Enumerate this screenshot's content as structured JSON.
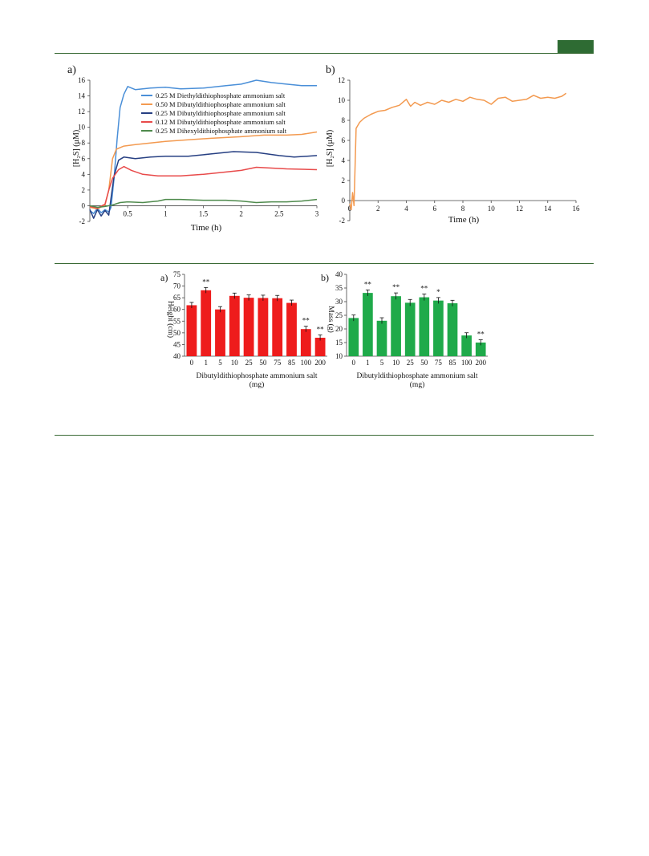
{
  "header": {
    "accent_color": "#2e6b33"
  },
  "figure_top": {
    "panel_a": {
      "label": "a)",
      "chart_data": {
        "type": "line",
        "title": "",
        "xlabel": "Time (h)",
        "ylabel": "[H₂S] (μM)",
        "xlim": [
          0,
          3
        ],
        "ylim": [
          -2,
          16
        ],
        "x_ticks": [
          "0.5",
          "1",
          "1.5",
          "2",
          "2.5",
          "3"
        ],
        "x_tick_values": [
          0.5,
          1,
          1.5,
          2,
          2.5,
          3
        ],
        "y_ticks": [
          "-2",
          "0",
          "2",
          "4",
          "6",
          "8",
          "10",
          "12",
          "14",
          "16"
        ],
        "y_tick_values": [
          -2,
          0,
          2,
          4,
          6,
          8,
          10,
          12,
          14,
          16
        ],
        "legend_position": "top-right",
        "series": [
          {
            "name": "0.25 M Diethyldithiophosphate ammonium salt",
            "color": "#4a8fd8",
            "points": [
              [
                0,
                -0.6
              ],
              [
                0.05,
                -1.0
              ],
              [
                0.1,
                -0.3
              ],
              [
                0.15,
                -0.9
              ],
              [
                0.2,
                -0.5
              ],
              [
                0.25,
                -0.8
              ],
              [
                0.28,
                -0.2
              ],
              [
                0.32,
                3.5
              ],
              [
                0.36,
                8.5
              ],
              [
                0.4,
                12.5
              ],
              [
                0.45,
                14.2
              ],
              [
                0.5,
                15.2
              ],
              [
                0.6,
                14.8
              ],
              [
                0.8,
                15.0
              ],
              [
                1.0,
                15.1
              ],
              [
                1.2,
                14.9
              ],
              [
                1.5,
                15.0
              ],
              [
                1.8,
                15.3
              ],
              [
                2.0,
                15.5
              ],
              [
                2.2,
                16.0
              ],
              [
                2.4,
                15.7
              ],
              [
                2.6,
                15.5
              ],
              [
                2.8,
                15.3
              ],
              [
                3.0,
                15.3
              ]
            ]
          },
          {
            "name": "0.50 M Dibutyldithiophosphate ammonium salt",
            "color": "#f39a50",
            "points": [
              [
                0,
                -0.2
              ],
              [
                0.1,
                -0.4
              ],
              [
                0.2,
                0.1
              ],
              [
                0.25,
                2.0
              ],
              [
                0.3,
                6.0
              ],
              [
                0.35,
                7.2
              ],
              [
                0.45,
                7.6
              ],
              [
                0.6,
                7.8
              ],
              [
                0.8,
                8.0
              ],
              [
                1.0,
                8.2
              ],
              [
                1.3,
                8.4
              ],
              [
                1.6,
                8.6
              ],
              [
                2.0,
                8.8
              ],
              [
                2.3,
                9.0
              ],
              [
                2.6,
                9.0
              ],
              [
                2.8,
                9.1
              ],
              [
                3.0,
                9.4
              ]
            ]
          },
          {
            "name": "0.25 M Dibutyldithiophosphate ammonium salt",
            "color": "#263f82",
            "points": [
              [
                0,
                -0.5
              ],
              [
                0.05,
                -1.6
              ],
              [
                0.1,
                -0.5
              ],
              [
                0.15,
                -1.3
              ],
              [
                0.2,
                -0.6
              ],
              [
                0.25,
                -1.2
              ],
              [
                0.28,
                1.0
              ],
              [
                0.32,
                3.8
              ],
              [
                0.38,
                5.8
              ],
              [
                0.45,
                6.2
              ],
              [
                0.6,
                6.0
              ],
              [
                0.8,
                6.2
              ],
              [
                1.0,
                6.3
              ],
              [
                1.3,
                6.3
              ],
              [
                1.6,
                6.6
              ],
              [
                1.9,
                6.9
              ],
              [
                2.2,
                6.8
              ],
              [
                2.5,
                6.4
              ],
              [
                2.7,
                6.2
              ],
              [
                3.0,
                6.4
              ]
            ]
          },
          {
            "name": "0.12 M Dibutyldithiophosphate ammonium salt",
            "color": "#e84a4a",
            "points": [
              [
                0,
                -0.1
              ],
              [
                0.1,
                -0.3
              ],
              [
                0.2,
                0.2
              ],
              [
                0.25,
                2.0
              ],
              [
                0.3,
                3.5
              ],
              [
                0.38,
                4.6
              ],
              [
                0.45,
                5.0
              ],
              [
                0.55,
                4.5
              ],
              [
                0.7,
                4.0
              ],
              [
                0.9,
                3.8
              ],
              [
                1.2,
                3.8
              ],
              [
                1.5,
                4.0
              ],
              [
                1.8,
                4.3
              ],
              [
                2.0,
                4.5
              ],
              [
                2.2,
                4.9
              ],
              [
                2.4,
                4.8
              ],
              [
                2.6,
                4.7
              ],
              [
                3.0,
                4.6
              ]
            ]
          },
          {
            "name": "0.25 M Dihexyldithiophosphate ammonium salt",
            "color": "#4e8a4c",
            "points": [
              [
                0,
                0.0
              ],
              [
                0.1,
                -0.2
              ],
              [
                0.2,
                -0.1
              ],
              [
                0.3,
                0.1
              ],
              [
                0.4,
                0.4
              ],
              [
                0.5,
                0.5
              ],
              [
                0.7,
                0.4
              ],
              [
                0.9,
                0.6
              ],
              [
                1.0,
                0.8
              ],
              [
                1.2,
                0.8
              ],
              [
                1.5,
                0.7
              ],
              [
                1.8,
                0.7
              ],
              [
                2.0,
                0.6
              ],
              [
                2.2,
                0.4
              ],
              [
                2.4,
                0.5
              ],
              [
                2.6,
                0.5
              ],
              [
                2.8,
                0.6
              ],
              [
                3.0,
                0.8
              ]
            ]
          }
        ]
      }
    },
    "panel_b": {
      "label": "b)",
      "chart_data": {
        "type": "line",
        "title": "",
        "xlabel": "Time (h)",
        "ylabel": "[H₂S] (μM)",
        "xlim": [
          0,
          16
        ],
        "ylim": [
          -2,
          12
        ],
        "x_ticks": [
          "0",
          "2",
          "4",
          "6",
          "8",
          "10",
          "12",
          "14",
          "16"
        ],
        "x_tick_values": [
          0,
          2,
          4,
          6,
          8,
          10,
          12,
          14,
          16
        ],
        "y_ticks": [
          "-2",
          "0",
          "2",
          "4",
          "6",
          "8",
          "10",
          "12"
        ],
        "y_tick_values": [
          -2,
          0,
          2,
          4,
          6,
          8,
          10,
          12
        ],
        "series": [
          {
            "name": "",
            "color": "#f39a50",
            "points": [
              [
                0,
                -0.3
              ],
              [
                0.1,
                -0.9
              ],
              [
                0.2,
                0.8
              ],
              [
                0.3,
                -0.5
              ],
              [
                0.45,
                7.2
              ],
              [
                0.7,
                7.8
              ],
              [
                1.0,
                8.2
              ],
              [
                1.5,
                8.6
              ],
              [
                2.0,
                8.9
              ],
              [
                2.5,
                9.0
              ],
              [
                3.0,
                9.3
              ],
              [
                3.5,
                9.5
              ],
              [
                4.0,
                10.1
              ],
              [
                4.3,
                9.4
              ],
              [
                4.6,
                9.8
              ],
              [
                5.0,
                9.5
              ],
              [
                5.5,
                9.8
              ],
              [
                6.0,
                9.6
              ],
              [
                6.5,
                10.0
              ],
              [
                7.0,
                9.8
              ],
              [
                7.5,
                10.1
              ],
              [
                8.0,
                9.9
              ],
              [
                8.5,
                10.3
              ],
              [
                9.0,
                10.1
              ],
              [
                9.5,
                10.0
              ],
              [
                10.0,
                9.6
              ],
              [
                10.5,
                10.2
              ],
              [
                11.0,
                10.3
              ],
              [
                11.5,
                9.9
              ],
              [
                12.0,
                10.0
              ],
              [
                12.5,
                10.1
              ],
              [
                13.0,
                10.5
              ],
              [
                13.5,
                10.2
              ],
              [
                14.0,
                10.3
              ],
              [
                14.5,
                10.2
              ],
              [
                15.0,
                10.4
              ],
              [
                15.3,
                10.7
              ]
            ]
          }
        ]
      }
    }
  },
  "figure_bottom": {
    "panel_a": {
      "label": "a)",
      "chart_data": {
        "type": "bar",
        "title": "",
        "xlabel": "Dibutyldithiophosphate ammonium salt",
        "xlabel_unit": "(mg)",
        "ylabel": "Height (cm)",
        "ylim": [
          40,
          75
        ],
        "y_ticks": [
          "40",
          "45",
          "50",
          "55",
          "60",
          "65",
          "70",
          "75"
        ],
        "y_tick_values": [
          40,
          45,
          50,
          55,
          60,
          65,
          70,
          75
        ],
        "color": "#ee1c1c",
        "categories": [
          "0",
          "1",
          "5",
          "10",
          "25",
          "50",
          "75",
          "85",
          "100",
          "200"
        ],
        "values": [
          61.8,
          68.2,
          60.0,
          65.8,
          65.0,
          64.9,
          64.8,
          62.8,
          51.6,
          47.9
        ],
        "errors": [
          1.2,
          1.2,
          1.2,
          1.2,
          1.2,
          1.2,
          1.2,
          1.2,
          1.2,
          1.2
        ],
        "annotations": [
          "",
          "**",
          "",
          "",
          "",
          "",
          "",
          "",
          "**",
          "**"
        ]
      }
    },
    "panel_b": {
      "label": "b)",
      "chart_data": {
        "type": "bar",
        "title": "",
        "xlabel": "Dibutyldithiophosphate ammonium salt",
        "xlabel_unit": "(mg)",
        "ylabel": "Mass (g)",
        "ylim": [
          10,
          40
        ],
        "y_ticks": [
          "10",
          "15",
          "20",
          "25",
          "30",
          "35",
          "40"
        ],
        "y_tick_values": [
          10,
          15,
          20,
          25,
          30,
          35,
          40
        ],
        "color": "#1faa4a",
        "categories": [
          "0",
          "1",
          "5",
          "10",
          "25",
          "50",
          "75",
          "85",
          "100",
          "200"
        ],
        "values": [
          24.0,
          33.2,
          23.0,
          32.0,
          29.6,
          31.6,
          30.4,
          29.4,
          17.6,
          15.0
        ],
        "errors": [
          1.1,
          1.1,
          1.1,
          1.2,
          1.2,
          1.2,
          1.1,
          1.1,
          1.0,
          1.0
        ],
        "annotations": [
          "",
          "**",
          "",
          "**",
          "",
          "**",
          "*",
          "",
          "",
          "**"
        ]
      }
    }
  }
}
